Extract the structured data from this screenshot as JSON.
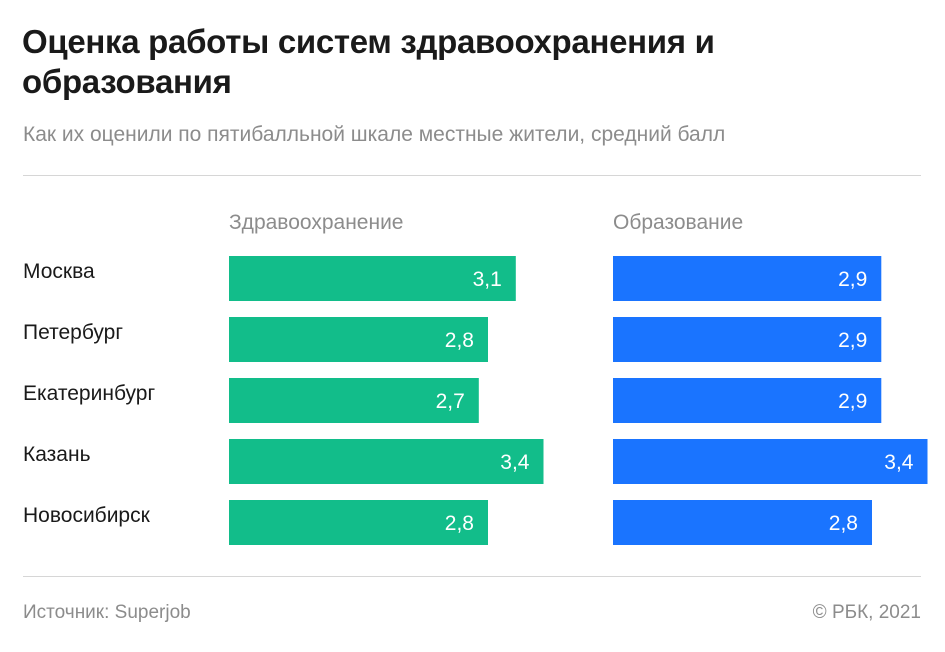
{
  "title": "Оценка работы систем здравоохранения и образования",
  "subtitle": "Как их оценили по пятибалльной шкале местные жители, средний балл",
  "footer": {
    "source": "Источник: Superjob",
    "copyright": "© РБК, 2021"
  },
  "colors": {
    "health": "#12bd8a",
    "education": "#1a74ff",
    "bar_label": "#ffffff",
    "text": "#1a1a1a",
    "muted": "#8c8c8c"
  },
  "chart_data": {
    "type": "bar",
    "orientation": "horizontal",
    "categories": [
      "Москва",
      "Петербург",
      "Екатеринбург",
      "Казань",
      "Новосибирск"
    ],
    "series": [
      {
        "name": "Здравоохранение",
        "values": [
          3.1,
          2.8,
          2.7,
          3.4,
          2.8
        ],
        "value_labels": [
          "3,1",
          "2,8",
          "2,7",
          "3,4",
          "2,8"
        ]
      },
      {
        "name": "Образование",
        "values": [
          2.9,
          2.9,
          2.9,
          3.4,
          2.8
        ],
        "value_labels": [
          "2,9",
          "2,9",
          "2,9",
          "3,4",
          "2,8"
        ]
      }
    ],
    "title": "Оценка работы систем здравоохранения и образования",
    "subtitle": "Как их оценили по пятибалльной шкале местные жители, средний балл",
    "xlim": [
      0,
      3.4
    ],
    "grid": false,
    "legend": "panel-headers"
  }
}
